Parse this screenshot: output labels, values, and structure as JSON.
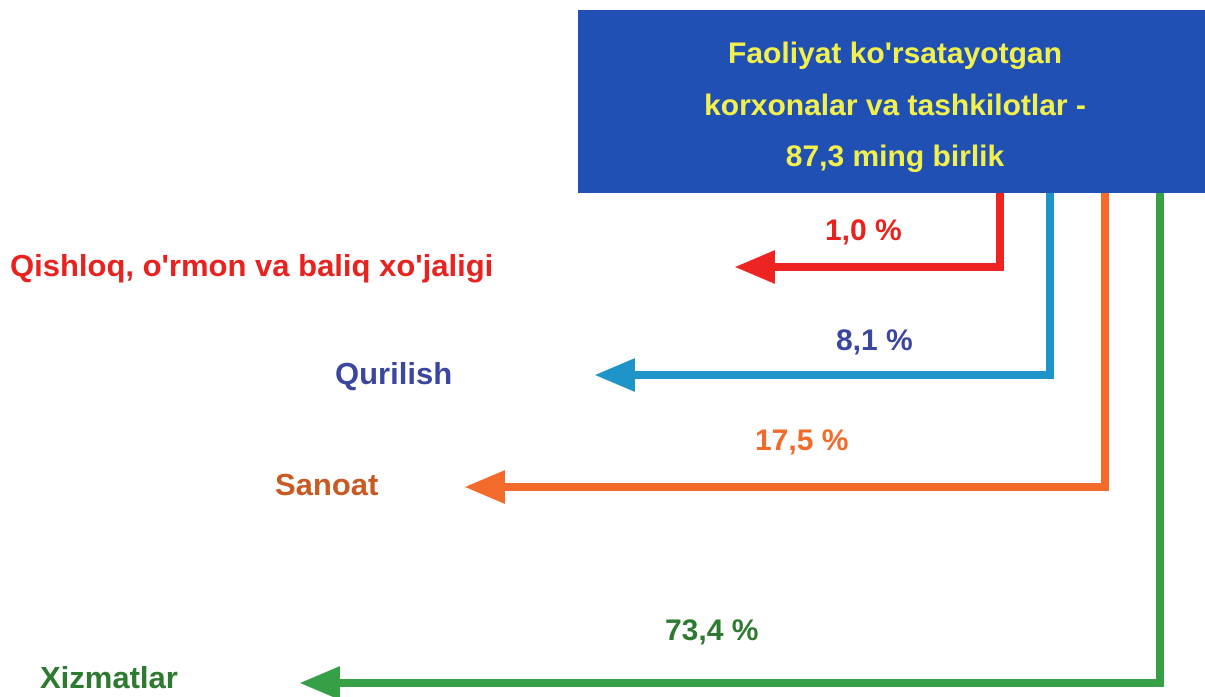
{
  "header": {
    "lines": [
      "Faoliyat ko'rsatayotgan",
      "korxonalar va tashkilotlar -",
      "87,3 ming birlik"
    ]
  },
  "branches": [
    {
      "label": "Qishloq, o'rmon va baliq xo'jaligi",
      "share": "1,0 %"
    },
    {
      "label": "Qurilish",
      "share": "8,1 %"
    },
    {
      "label": "Sanoat",
      "share": "17,5 %"
    },
    {
      "label": "Xizmatlar",
      "share": "73,4 %"
    }
  ]
}
